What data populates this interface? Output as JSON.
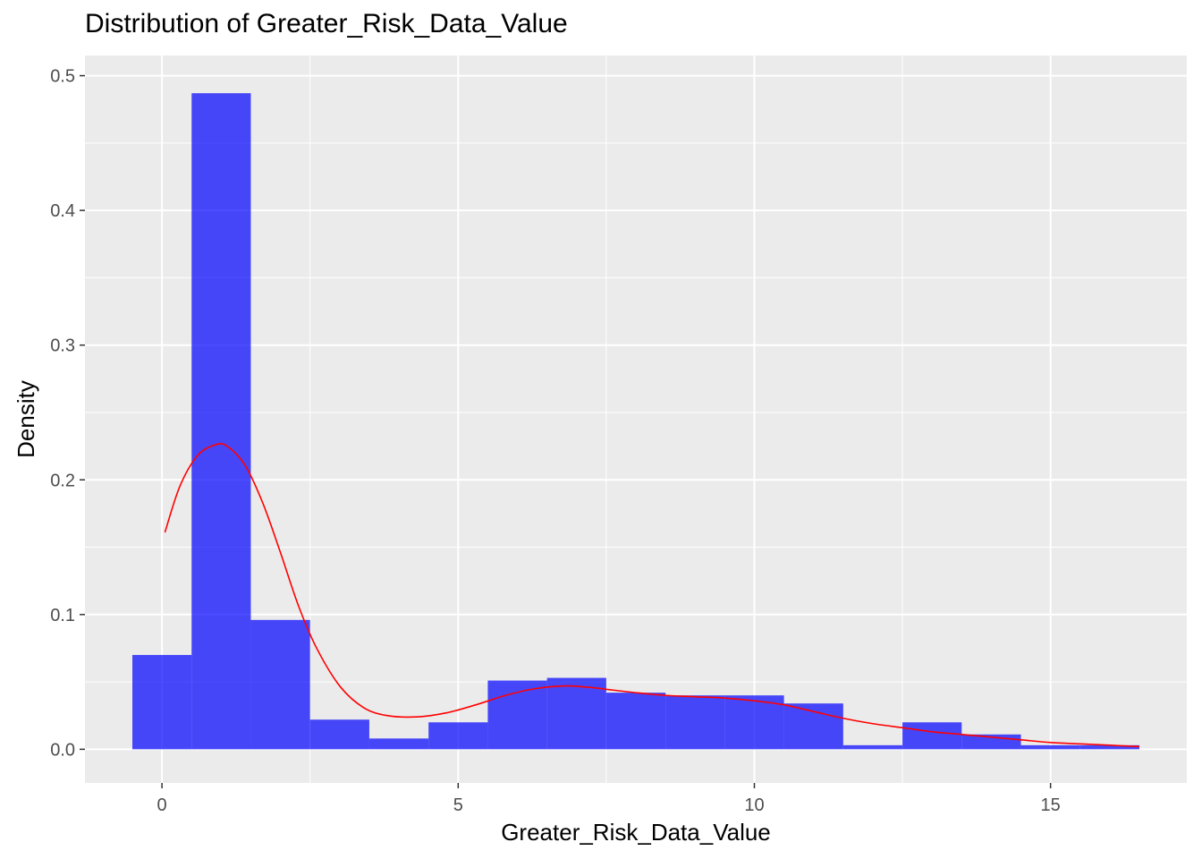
{
  "chart_data": {
    "type": "bar",
    "title": "Distribution of Greater_Risk_Data_Value",
    "xlabel": "Greater_Risk_Data_Value",
    "ylabel": "Density",
    "xlim": [
      -1.3,
      17.3
    ],
    "ylim": [
      -0.025,
      0.515
    ],
    "x_ticks": [
      0,
      5,
      10,
      15
    ],
    "x_tick_labels": [
      "0",
      "5",
      "10",
      "15"
    ],
    "y_ticks": [
      0.0,
      0.1,
      0.2,
      0.3,
      0.4,
      0.5
    ],
    "y_tick_labels": [
      "0.0",
      "0.1",
      "0.2",
      "0.3",
      "0.4",
      "0.5"
    ],
    "grid": true,
    "histogram": {
      "fill_color": "#0000ff",
      "bins": [
        {
          "x0": -0.5,
          "x1": 0.5,
          "density": 0.07
        },
        {
          "x0": 0.5,
          "x1": 1.5,
          "density": 0.487
        },
        {
          "x0": 1.5,
          "x1": 2.5,
          "density": 0.096
        },
        {
          "x0": 2.5,
          "x1": 3.5,
          "density": 0.022
        },
        {
          "x0": 3.5,
          "x1": 4.5,
          "density": 0.008
        },
        {
          "x0": 4.5,
          "x1": 5.5,
          "density": 0.02
        },
        {
          "x0": 5.5,
          "x1": 6.5,
          "density": 0.051
        },
        {
          "x0": 6.5,
          "x1": 7.5,
          "density": 0.053
        },
        {
          "x0": 7.5,
          "x1": 8.5,
          "density": 0.042
        },
        {
          "x0": 8.5,
          "x1": 9.5,
          "density": 0.04
        },
        {
          "x0": 9.5,
          "x1": 10.5,
          "density": 0.04
        },
        {
          "x0": 10.5,
          "x1": 11.5,
          "density": 0.034
        },
        {
          "x0": 11.5,
          "x1": 12.5,
          "density": 0.003
        },
        {
          "x0": 12.5,
          "x1": 13.5,
          "density": 0.02
        },
        {
          "x0": 13.5,
          "x1": 14.5,
          "density": 0.011
        },
        {
          "x0": 14.5,
          "x1": 15.5,
          "density": 0.003
        },
        {
          "x0": 15.5,
          "x1": 16.5,
          "density": 0.003
        }
      ]
    },
    "density_curve": {
      "color": "#ff0000",
      "x": [
        0.05,
        0.3,
        0.6,
        0.9,
        1.1,
        1.4,
        1.7,
        2.0,
        2.3,
        2.6,
        3.0,
        3.4,
        3.8,
        4.3,
        4.8,
        5.3,
        5.8,
        6.3,
        6.8,
        7.2,
        7.6,
        8.0,
        8.5,
        9.0,
        9.5,
        10.0,
        10.5,
        11.0,
        11.5,
        12.0,
        12.5,
        13.0,
        13.5,
        14.0,
        14.5,
        15.0,
        15.5,
        16.0,
        16.5
      ],
      "y": [
        0.161,
        0.195,
        0.218,
        0.226,
        0.225,
        0.211,
        0.183,
        0.146,
        0.107,
        0.076,
        0.047,
        0.031,
        0.025,
        0.024,
        0.027,
        0.033,
        0.04,
        0.045,
        0.047,
        0.046,
        0.044,
        0.042,
        0.04,
        0.039,
        0.038,
        0.036,
        0.033,
        0.028,
        0.023,
        0.019,
        0.016,
        0.013,
        0.011,
        0.009,
        0.007,
        0.005,
        0.004,
        0.003,
        0.002
      ]
    }
  }
}
